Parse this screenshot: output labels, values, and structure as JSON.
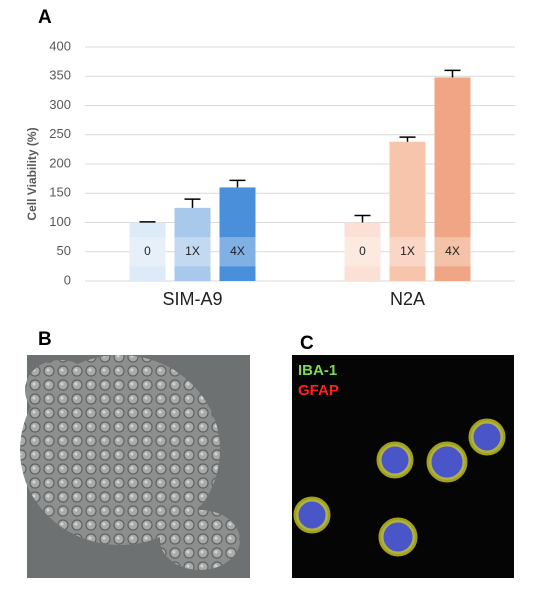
{
  "chart_data": {
    "type": "bar",
    "y_label": "Cell Viability (%)",
    "categories": [
      "SIM-A9",
      "N2A"
    ],
    "series": [
      {
        "name": "0",
        "colors": [
          "#ddeaf7",
          "#fbe1d5"
        ],
        "values": [
          100,
          100
        ],
        "errors": [
          1,
          12
        ]
      },
      {
        "name": "1X",
        "colors": [
          "#a9c9ec",
          "#f6c5ac"
        ],
        "values": [
          125,
          238
        ],
        "errors": [
          15,
          8
        ]
      },
      {
        "name": "4X",
        "colors": [
          "#4a8fd9",
          "#f0a684"
        ],
        "values": [
          160,
          348
        ],
        "errors": [
          12,
          12
        ]
      }
    ],
    "ylim": [
      0,
      400
    ],
    "yticks": [
      0,
      50,
      100,
      150,
      200,
      250,
      300,
      350,
      400
    ],
    "grid": true
  },
  "panel_labels": [
    "A",
    "B",
    "C"
  ],
  "stain_labels": [
    {
      "text": "IBA-1",
      "color": "#7ed957"
    },
    {
      "text": "GFAP",
      "color": "#ff2020"
    }
  ]
}
